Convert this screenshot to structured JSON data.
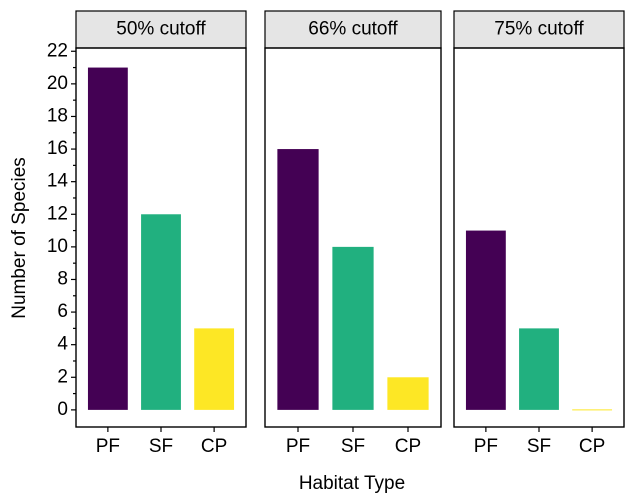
{
  "chart_data": {
    "type": "bar",
    "ylabel": "Number of Species",
    "xlabel": "Habitat Type",
    "categories": [
      "PF",
      "SF",
      "CP"
    ],
    "colors": [
      "#440154",
      "#21b07f",
      "#fde725"
    ],
    "facets": [
      {
        "title": "50% cutoff",
        "values": [
          21,
          12,
          5
        ]
      },
      {
        "title": "66% cutoff",
        "values": [
          16,
          10,
          2
        ]
      },
      {
        "title": "75% cutoff",
        "values": [
          11,
          5,
          0
        ]
      }
    ],
    "ylim": [
      -1.05,
      22.2
    ],
    "yticks": [
      0,
      2,
      4,
      6,
      8,
      10,
      12,
      14,
      16,
      18,
      20,
      22
    ],
    "yminorticks": [
      1,
      3,
      5,
      7,
      9,
      11,
      13,
      15,
      17,
      19,
      21
    ]
  }
}
